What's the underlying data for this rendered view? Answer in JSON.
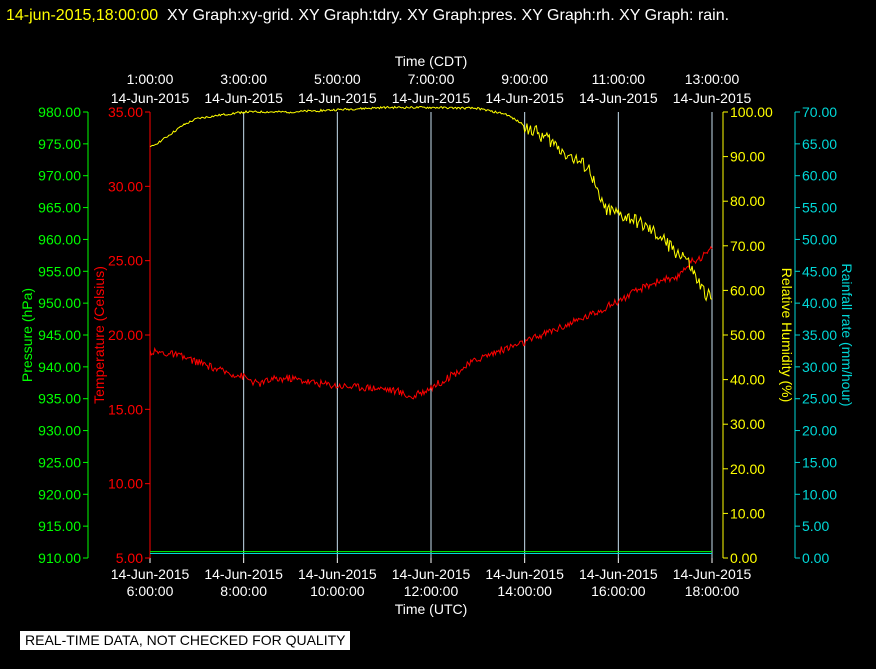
{
  "header": {
    "timestamp": "14-jun-2015,18:00:00",
    "titles": "XY Graph:xy-grid.  XY Graph:tdry.  XY Graph:pres.  XY Graph:rh.  XY Graph: rain."
  },
  "notice": "REAL-TIME DATA, NOT CHECKED FOR QUALITY",
  "colors": {
    "grid": "#c8e0f0",
    "pressure": "#00ff00",
    "temperature": "#ff0000",
    "humidity": "#ffff00",
    "rain": "#00d8d8",
    "text": "#ffffff"
  },
  "chart_data": {
    "type": "line",
    "top_axis": {
      "label": "Time (CDT)",
      "ticks": [
        {
          "time": "1:00:00",
          "date": "14-Jun-2015"
        },
        {
          "time": "3:00:00",
          "date": "14-Jun-2015"
        },
        {
          "time": "5:00:00",
          "date": "14-Jun-2015"
        },
        {
          "time": "7:00:00",
          "date": "14-Jun-2015"
        },
        {
          "time": "9:00:00",
          "date": "14-Jun-2015"
        },
        {
          "time": "11:00:00",
          "date": "14-Jun-2015"
        },
        {
          "time": "13:00:00",
          "date": "14-Jun-2015"
        }
      ]
    },
    "bottom_axis": {
      "label": "Time (UTC)",
      "range_hours": [
        6,
        18
      ],
      "ticks": [
        {
          "hour": 6,
          "date": "14-Jun-2015",
          "time": "6:00:00"
        },
        {
          "hour": 8,
          "date": "14-Jun-2015",
          "time": "8:00:00"
        },
        {
          "hour": 10,
          "date": "14-Jun-2015",
          "time": "10:00:00"
        },
        {
          "hour": 12,
          "date": "14-Jun-2015",
          "time": "12:00:00"
        },
        {
          "hour": 14,
          "date": "14-Jun-2015",
          "time": "14:00:00"
        },
        {
          "hour": 16,
          "date": "14-Jun-2015",
          "time": "16:00:00"
        },
        {
          "hour": 18,
          "date": "14-Jun-2015",
          "time": "18:00:00"
        }
      ]
    },
    "axes": {
      "pressure": {
        "label": "Pressure (hPa)",
        "range": [
          910,
          980
        ],
        "ticks": [
          "910.00",
          "915.00",
          "920.00",
          "925.00",
          "930.00",
          "935.00",
          "940.00",
          "945.00",
          "950.00",
          "955.00",
          "960.00",
          "965.00",
          "970.00",
          "975.00",
          "980.00"
        ]
      },
      "temperature": {
        "label": "Temperature (Celsius)",
        "range": [
          5,
          35
        ],
        "ticks": [
          "5.00",
          "10.00",
          "15.00",
          "20.00",
          "25.00",
          "30.00",
          "35.00"
        ]
      },
      "humidity": {
        "label": "Relative Humidity (%)",
        "range": [
          0,
          100
        ],
        "ticks": [
          "0.00",
          "10.00",
          "20.00",
          "30.00",
          "40.00",
          "50.00",
          "60.00",
          "70.00",
          "80.00",
          "90.00",
          "100.00"
        ]
      },
      "rain": {
        "label": "Rainfall rate (mm/hour)",
        "range": [
          0,
          70
        ],
        "ticks": [
          "0.00",
          "5.00",
          "10.00",
          "15.00",
          "20.00",
          "25.00",
          "30.00",
          "35.00",
          "40.00",
          "45.00",
          "50.00",
          "55.00",
          "60.00",
          "65.00",
          "70.00"
        ]
      }
    },
    "grid": "vertical",
    "series": [
      {
        "name": "tdry",
        "axis": "temperature",
        "points": [
          [
            6,
            18.9
          ],
          [
            6.5,
            18.7
          ],
          [
            7,
            18.2
          ],
          [
            7.5,
            17.6
          ],
          [
            8,
            17.2
          ],
          [
            8.3,
            16.7
          ],
          [
            8.6,
            17.0
          ],
          [
            9,
            17.1
          ],
          [
            9.5,
            16.8
          ],
          [
            10,
            16.6
          ],
          [
            10.5,
            16.5
          ],
          [
            11,
            16.4
          ],
          [
            11.3,
            16.2
          ],
          [
            11.6,
            15.8
          ],
          [
            11.9,
            16.3
          ],
          [
            12.3,
            17.0
          ],
          [
            12.7,
            17.8
          ],
          [
            13,
            18.4
          ],
          [
            13.5,
            19.0
          ],
          [
            14,
            19.5
          ],
          [
            14.5,
            20.2
          ],
          [
            15,
            20.8
          ],
          [
            15.5,
            21.5
          ],
          [
            16,
            22.3
          ],
          [
            16.3,
            22.8
          ],
          [
            16.6,
            23.3
          ],
          [
            17,
            23.8
          ],
          [
            17.2,
            23.6
          ],
          [
            17.4,
            24.5
          ],
          [
            17.6,
            25.0
          ],
          [
            17.8,
            25.3
          ],
          [
            18,
            25.8
          ]
        ]
      },
      {
        "name": "rh",
        "axis": "humidity",
        "points": [
          [
            6,
            92
          ],
          [
            6.3,
            94
          ],
          [
            6.7,
            97
          ],
          [
            7,
            98.5
          ],
          [
            7.5,
            99.3
          ],
          [
            8,
            100
          ],
          [
            9,
            100
          ],
          [
            10,
            100.5
          ],
          [
            11,
            101
          ],
          [
            12,
            101
          ],
          [
            13,
            100.8
          ],
          [
            13.6,
            99.5
          ],
          [
            14,
            97
          ],
          [
            14.5,
            94
          ],
          [
            15,
            90
          ],
          [
            15.4,
            87
          ],
          [
            15.6,
            80
          ],
          [
            15.8,
            78
          ],
          [
            16,
            77
          ],
          [
            16.3,
            76
          ],
          [
            16.6,
            74
          ],
          [
            16.9,
            72
          ],
          [
            17.2,
            69
          ],
          [
            17.4,
            68
          ],
          [
            17.6,
            64
          ],
          [
            17.8,
            60
          ],
          [
            18,
            58
          ]
        ]
      },
      {
        "name": "pres",
        "axis": "pressure",
        "points": [
          [
            6,
            911
          ],
          [
            18,
            911
          ]
        ]
      },
      {
        "name": "rain",
        "axis": "rain",
        "points": [
          [
            6,
            0.7
          ],
          [
            18,
            0.7
          ]
        ]
      }
    ]
  }
}
